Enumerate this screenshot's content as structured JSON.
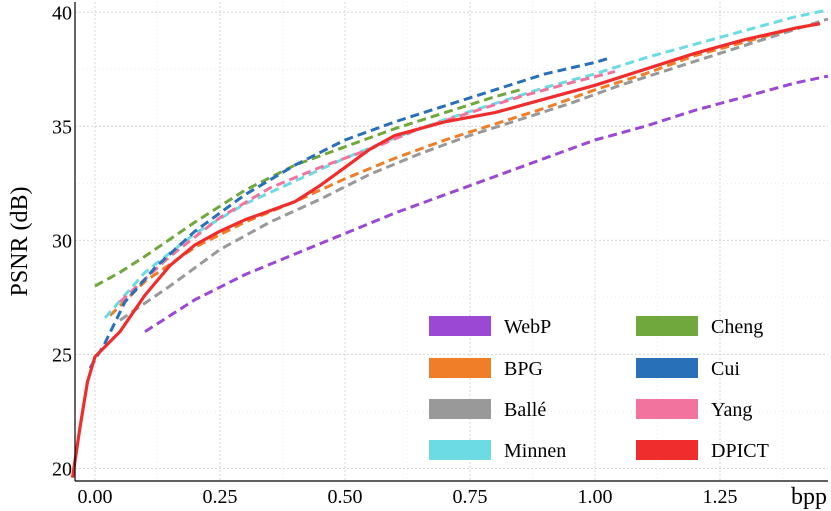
{
  "chart_data": {
    "type": "line",
    "title": "",
    "xlabel": "bpp",
    "ylabel": "PSNR (dB)",
    "xlim": [
      -0.04,
      1.466
    ],
    "ylim": [
      19.45,
      40.45
    ],
    "x_ticks": [
      0.0,
      0.25,
      0.5,
      0.75,
      1.0,
      1.25
    ],
    "x_tick_labels": [
      "0.00",
      "0.25",
      "0.50",
      "0.75",
      "1.00",
      "1.25"
    ],
    "y_ticks": [
      20,
      25,
      30,
      35,
      40
    ],
    "y_tick_labels": [
      "20",
      "25",
      "30",
      "35",
      "40"
    ],
    "grid": true,
    "legend_position": "bottom-right",
    "series": [
      {
        "name": "WebP",
        "color": "#9b48d4",
        "dashed": true,
        "points": [
          [
            0.1,
            26.0
          ],
          [
            0.2,
            27.4
          ],
          [
            0.3,
            28.5
          ],
          [
            0.4,
            29.4
          ],
          [
            0.5,
            30.3
          ],
          [
            0.6,
            31.2
          ],
          [
            0.7,
            32.0
          ],
          [
            0.8,
            32.8
          ],
          [
            0.9,
            33.6
          ],
          [
            1.0,
            34.4
          ],
          [
            1.1,
            35.0
          ],
          [
            1.2,
            35.7
          ],
          [
            1.3,
            36.3
          ],
          [
            1.4,
            36.9
          ],
          [
            1.466,
            37.2
          ]
        ]
      },
      {
        "name": "BPG",
        "color": "#f07d28",
        "dashed": true,
        "points": [
          [
            0.03,
            26.7
          ],
          [
            0.1,
            28.2
          ],
          [
            0.2,
            29.7
          ],
          [
            0.3,
            30.8
          ],
          [
            0.4,
            31.7
          ],
          [
            0.5,
            32.7
          ],
          [
            0.6,
            33.6
          ],
          [
            0.7,
            34.4
          ],
          [
            0.8,
            35.1
          ],
          [
            0.9,
            35.8
          ],
          [
            1.0,
            36.6
          ],
          [
            1.1,
            37.3
          ],
          [
            1.2,
            38.1
          ],
          [
            1.3,
            38.7
          ],
          [
            1.4,
            39.3
          ],
          [
            1.45,
            39.5
          ]
        ]
      },
      {
        "name": "Ballé",
        "color": "#999999",
        "dashed": true,
        "points": [
          [
            0.05,
            26.5
          ],
          [
            0.15,
            28.0
          ],
          [
            0.25,
            29.6
          ],
          [
            0.35,
            30.8
          ],
          [
            0.45,
            31.8
          ],
          [
            0.55,
            32.9
          ],
          [
            0.65,
            33.8
          ],
          [
            0.75,
            34.6
          ],
          [
            0.85,
            35.3
          ],
          [
            0.95,
            36.0
          ],
          [
            1.05,
            36.8
          ],
          [
            1.15,
            37.5
          ],
          [
            1.25,
            38.2
          ],
          [
            1.35,
            38.9
          ],
          [
            1.45,
            39.6
          ],
          [
            1.466,
            39.7
          ]
        ]
      },
      {
        "name": "Minnen",
        "color": "#6cdbe4",
        "dashed": true,
        "points": [
          [
            0.02,
            26.6
          ],
          [
            0.1,
            28.6
          ],
          [
            0.2,
            30.3
          ],
          [
            0.3,
            31.6
          ],
          [
            0.4,
            32.6
          ],
          [
            0.5,
            33.6
          ],
          [
            0.6,
            34.5
          ],
          [
            0.7,
            35.3
          ],
          [
            0.8,
            36.0
          ],
          [
            0.9,
            36.7
          ],
          [
            1.0,
            37.3
          ],
          [
            1.1,
            38.0
          ],
          [
            1.2,
            38.6
          ],
          [
            1.3,
            39.2
          ],
          [
            1.4,
            39.8
          ],
          [
            1.466,
            40.1
          ]
        ]
      },
      {
        "name": "Cheng",
        "color": "#70a83d",
        "dashed": true,
        "points": [
          [
            0.0,
            28.0
          ],
          [
            0.05,
            28.6
          ],
          [
            0.1,
            29.3
          ],
          [
            0.2,
            30.8
          ],
          [
            0.3,
            32.2
          ],
          [
            0.4,
            33.3
          ],
          [
            0.5,
            34.1
          ],
          [
            0.6,
            34.9
          ],
          [
            0.7,
            35.6
          ],
          [
            0.8,
            36.3
          ],
          [
            0.85,
            36.6
          ]
        ]
      },
      {
        "name": "Cui",
        "color": "#2870b8",
        "dashed": true,
        "points": [
          [
            -0.01,
            24.4
          ],
          [
            0.02,
            25.5
          ],
          [
            0.06,
            27.3
          ],
          [
            0.12,
            28.8
          ],
          [
            0.2,
            30.4
          ],
          [
            0.3,
            32.0
          ],
          [
            0.4,
            33.3
          ],
          [
            0.5,
            34.4
          ],
          [
            0.6,
            35.2
          ],
          [
            0.7,
            35.9
          ],
          [
            0.8,
            36.6
          ],
          [
            0.9,
            37.3
          ],
          [
            1.0,
            37.8
          ],
          [
            1.03,
            38.0
          ]
        ]
      },
      {
        "name": "Yang",
        "color": "#f2739e",
        "dashed": true,
        "points": [
          [
            0.05,
            27.3
          ],
          [
            0.15,
            29.3
          ],
          [
            0.25,
            31.0
          ],
          [
            0.35,
            32.3
          ],
          [
            0.45,
            33.2
          ],
          [
            0.55,
            34.0
          ],
          [
            0.65,
            34.9
          ],
          [
            0.75,
            35.6
          ],
          [
            0.85,
            36.3
          ],
          [
            0.95,
            36.9
          ],
          [
            1.04,
            37.4
          ]
        ]
      },
      {
        "name": "DPICT",
        "color": "#f02d2d",
        "dashed": false,
        "points": [
          [
            -0.045,
            19.6
          ],
          [
            -0.03,
            21.8
          ],
          [
            -0.015,
            23.8
          ],
          [
            0.0,
            24.9
          ],
          [
            0.05,
            26.0
          ],
          [
            0.1,
            27.6
          ],
          [
            0.15,
            28.9
          ],
          [
            0.2,
            29.8
          ],
          [
            0.25,
            30.4
          ],
          [
            0.3,
            30.9
          ],
          [
            0.35,
            31.3
          ],
          [
            0.4,
            31.7
          ],
          [
            0.45,
            32.4
          ],
          [
            0.5,
            33.2
          ],
          [
            0.55,
            34.0
          ],
          [
            0.6,
            34.6
          ],
          [
            0.7,
            35.2
          ],
          [
            0.8,
            35.6
          ],
          [
            0.9,
            36.2
          ],
          [
            1.0,
            36.8
          ],
          [
            1.1,
            37.5
          ],
          [
            1.2,
            38.2
          ],
          [
            1.3,
            38.8
          ],
          [
            1.4,
            39.3
          ],
          [
            1.45,
            39.5
          ]
        ]
      }
    ]
  }
}
